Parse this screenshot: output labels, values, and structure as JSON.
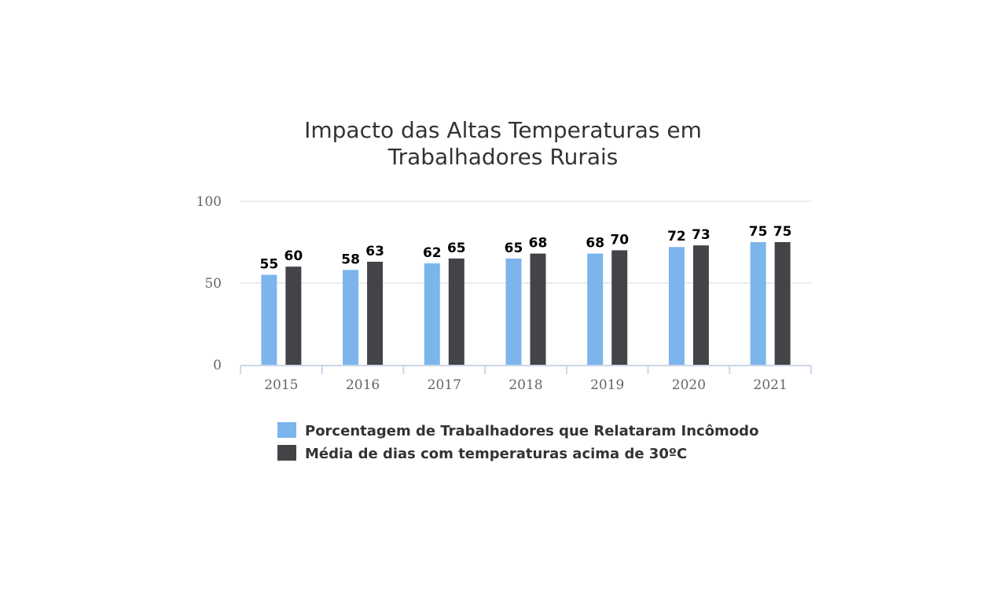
{
  "chart_data": {
    "type": "bar",
    "title_lines": [
      "Impacto das Altas Temperaturas em",
      "Trabalhadores Rurais"
    ],
    "categories": [
      "2015",
      "2016",
      "2017",
      "2018",
      "2019",
      "2020",
      "2021"
    ],
    "series": [
      {
        "name": "Porcentagem de Trabalhadores que Relataram Incômodo",
        "color": "#7cb5ec",
        "values": [
          55,
          58,
          62,
          65,
          68,
          72,
          75
        ]
      },
      {
        "name": "Média de dias com temperaturas acima de 30ºC",
        "color": "#434348",
        "values": [
          60,
          63,
          65,
          68,
          70,
          73,
          75
        ]
      }
    ],
    "ylim": [
      0,
      100
    ],
    "yticks": [
      0,
      50,
      100
    ],
    "xlabel": "",
    "ylabel": "",
    "grid": true,
    "data_labels": true,
    "legend_position": "bottom"
  }
}
